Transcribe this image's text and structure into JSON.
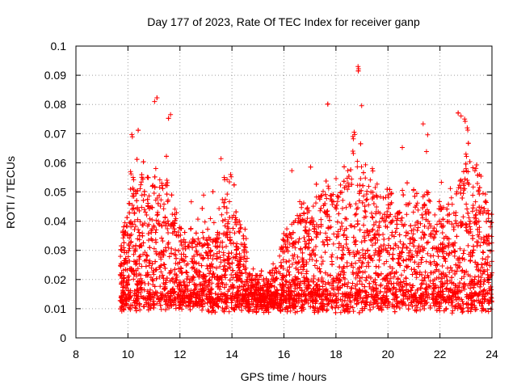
{
  "chart_data": {
    "type": "scatter",
    "title": "Day 177 of 2023, Rate Of TEC Index for receiver ganp",
    "xlabel": "GPS time / hours",
    "ylabel": "ROTI / TECUs",
    "xlim": [
      8,
      24
    ],
    "ylim": [
      0,
      0.1
    ],
    "xticks": [
      "8",
      "10",
      "12",
      "14",
      "16",
      "18",
      "20",
      "22",
      "24"
    ],
    "yticks": [
      "0",
      "0.01",
      "0.02",
      "0.03",
      "0.04",
      "0.05",
      "0.06",
      "0.07",
      "0.08",
      "0.09",
      "0.1"
    ],
    "grid": true,
    "marker": "plus",
    "color": "#ff0000",
    "series": [
      {
        "name": "ROTI",
        "x_range": [
          9.7,
          24.0
        ],
        "typical_range": [
          0.008,
          0.022
        ],
        "notable_points": [
          {
            "x": 10.15,
            "y": 0.0697
          },
          {
            "x": 10.1,
            "y": 0.057
          },
          {
            "x": 10.2,
            "y": 0.055
          },
          {
            "x": 11.3,
            "y": 0.053
          },
          {
            "x": 11.5,
            "y": 0.054
          },
          {
            "x": 13.7,
            "y": 0.055
          },
          {
            "x": 13.95,
            "y": 0.056
          },
          {
            "x": 17.7,
            "y": 0.052
          },
          {
            "x": 18.65,
            "y": 0.069
          },
          {
            "x": 18.7,
            "y": 0.0705
          },
          {
            "x": 18.65,
            "y": 0.064
          },
          {
            "x": 18.85,
            "y": 0.093
          },
          {
            "x": 19.4,
            "y": 0.058
          },
          {
            "x": 20.0,
            "y": 0.049
          },
          {
            "x": 21.5,
            "y": 0.05
          },
          {
            "x": 22.95,
            "y": 0.075
          },
          {
            "x": 23.05,
            "y": 0.072
          },
          {
            "x": 23.0,
            "y": 0.063
          },
          {
            "x": 23.0,
            "y": 0.058
          },
          {
            "x": 23.05,
            "y": 0.054
          }
        ]
      }
    ]
  }
}
